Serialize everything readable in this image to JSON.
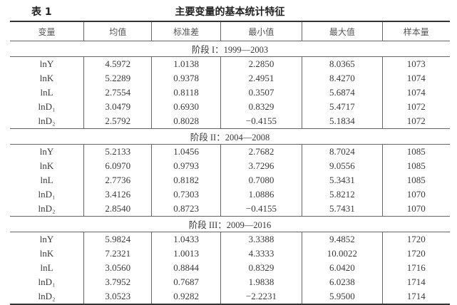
{
  "table_label": "表 1",
  "title": "主要变量的基本统计特征",
  "headers": [
    "变量",
    "均值",
    "标准差",
    "最小值",
    "最大值",
    "样本量"
  ],
  "groups": [
    {
      "label": "阶段 I：1999—2003",
      "rows": [
        [
          "lnY",
          "4.5972",
          "1.0138",
          "2.2850",
          "8.0365",
          "1073"
        ],
        [
          "lnK",
          "5.2289",
          "0.9378",
          "2.4951",
          "8.4270",
          "1074"
        ],
        [
          "lnL",
          "2.7554",
          "0.8118",
          "0.3507",
          "5.6874",
          "1074"
        ],
        [
          "lnD₁",
          "3.0479",
          "0.6930",
          "0.8329",
          "5.4717",
          "1072"
        ],
        [
          "lnD₂",
          "2.5792",
          "0.8028",
          "−0.4155",
          "5.1834",
          "1072"
        ]
      ]
    },
    {
      "label": "阶段 II：2004—2008",
      "rows": [
        [
          "lnY",
          "5.2133",
          "1.0456",
          "2.7682",
          "8.7024",
          "1085"
        ],
        [
          "lnK",
          "6.0970",
          "0.9793",
          "3.7296",
          "9.0556",
          "1085"
        ],
        [
          "lnL",
          "2.7736",
          "0.8182",
          "0.7080",
          "5.3431",
          "1085"
        ],
        [
          "lnD₁",
          "3.4126",
          "0.7303",
          "1.0886",
          "5.8212",
          "1070"
        ],
        [
          "lnD₂",
          "2.8540",
          "0.8723",
          "−0.4155",
          "5.7431",
          "1070"
        ]
      ]
    },
    {
      "label": "阶段 III：2009—2016",
      "rows": [
        [
          "lnY",
          "5.9824",
          "1.0433",
          "3.3388",
          "9.4852",
          "1720"
        ],
        [
          "lnK",
          "7.2321",
          "1.0013",
          "4.3333",
          "10.0022",
          "1720"
        ],
        [
          "lnL",
          "3.0560",
          "0.8844",
          "0.8329",
          "6.0420",
          "1716"
        ],
        [
          "lnD₁",
          "3.7952",
          "0.7687",
          "1.9838",
          "6.0238",
          "1714"
        ],
        [
          "lnD₂",
          "3.0523",
          "0.9282",
          "−2.2231",
          "5.9500",
          "1714"
        ]
      ]
    }
  ]
}
